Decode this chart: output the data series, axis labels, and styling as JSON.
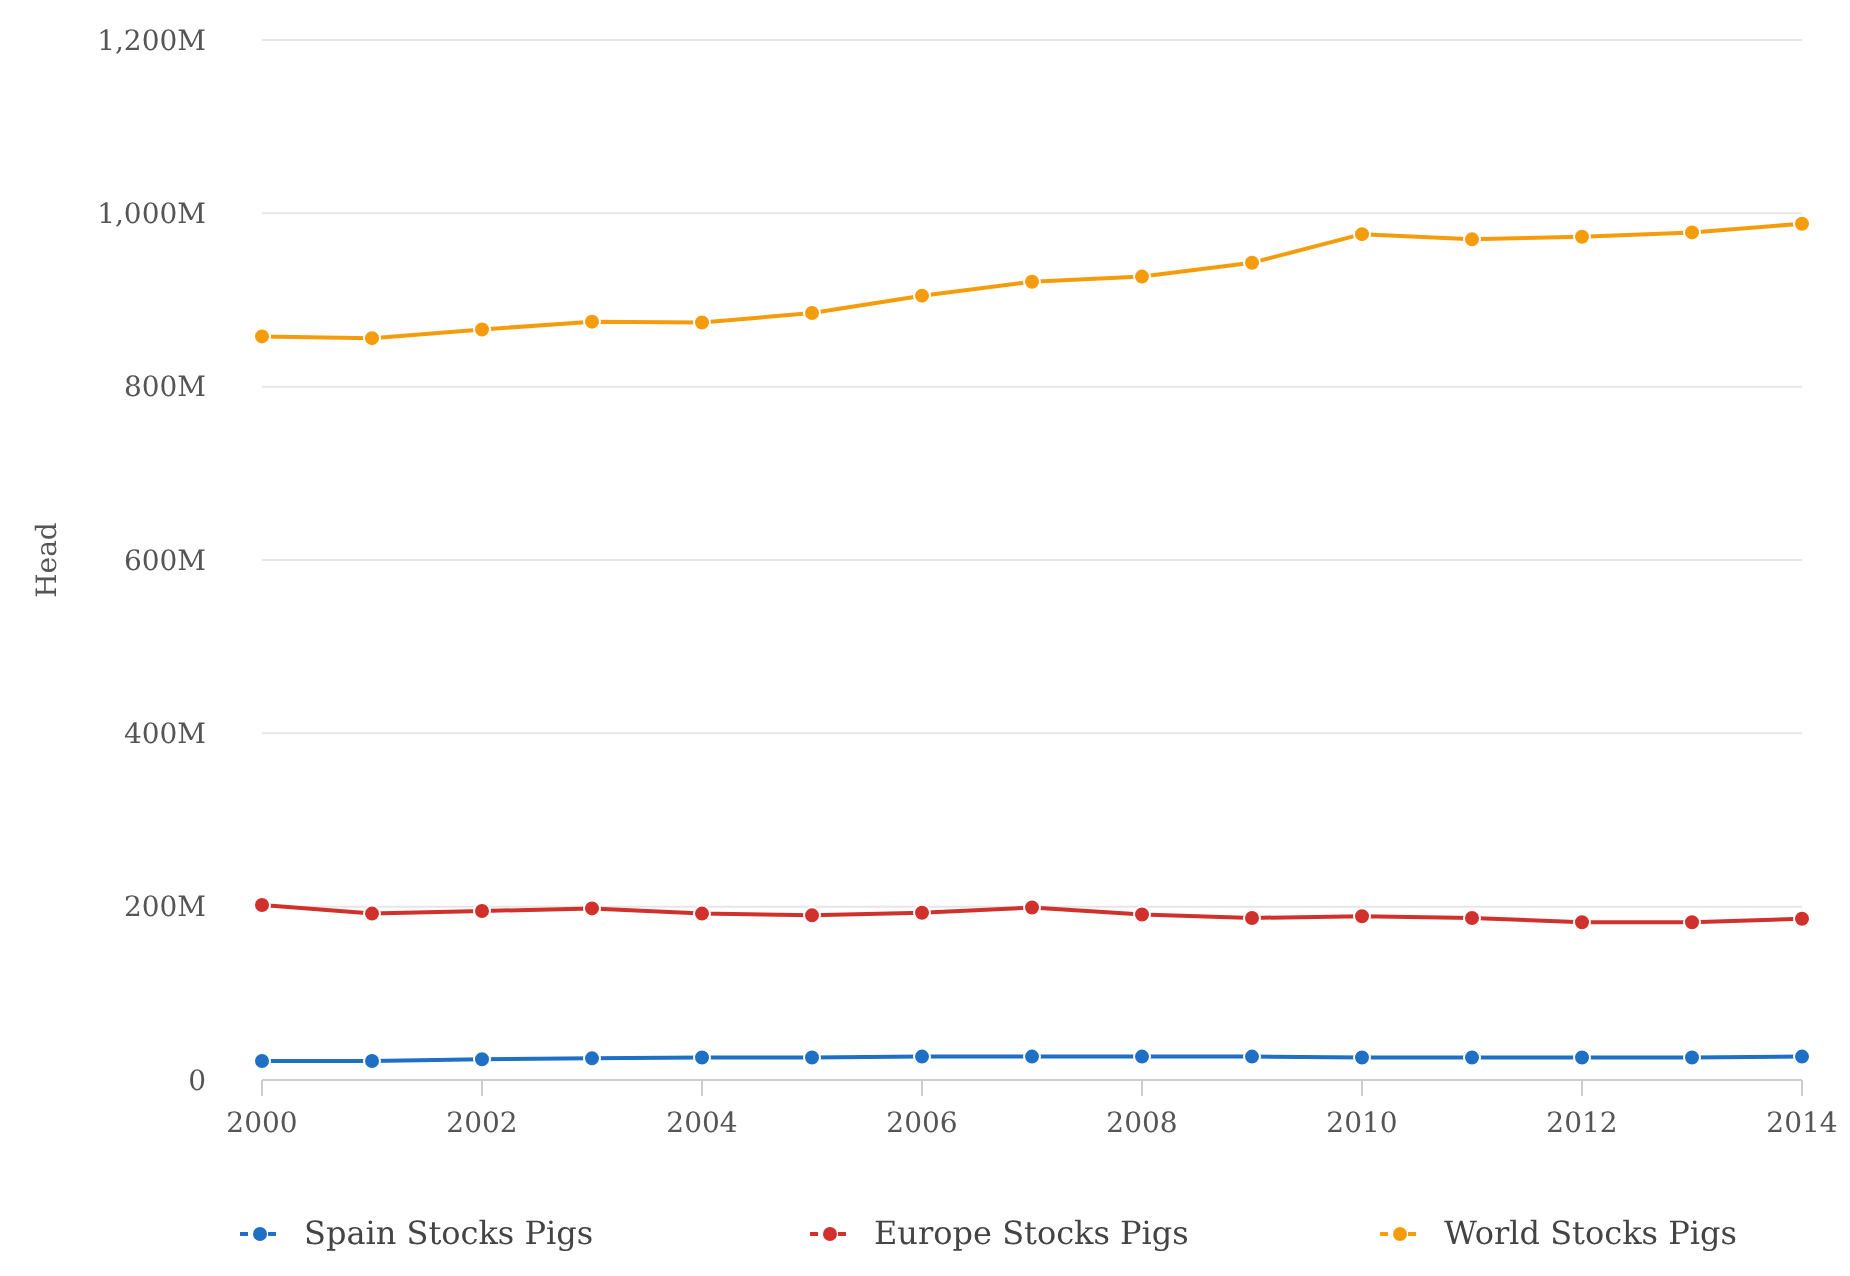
{
  "chart_data": {
    "type": "line",
    "ylabel": "Head",
    "x": [
      2000,
      2001,
      2002,
      2003,
      2004,
      2005,
      2006,
      2007,
      2008,
      2009,
      2010,
      2011,
      2012,
      2013,
      2014
    ],
    "series": [
      {
        "name": "Spain Stocks Pigs",
        "color": "#1f6fc5",
        "values": [
          22,
          22,
          24,
          25,
          26,
          26,
          27,
          27,
          27,
          27,
          26,
          26,
          26,
          26,
          27
        ]
      },
      {
        "name": "Europe Stocks Pigs",
        "color": "#d0312d",
        "values": [
          202,
          192,
          195,
          198,
          192,
          190,
          193,
          199,
          191,
          187,
          189,
          187,
          182,
          182,
          186
        ]
      },
      {
        "name": "World Stocks Pigs",
        "color": "#f59c0c",
        "values": [
          858,
          856,
          866,
          875,
          874,
          885,
          905,
          921,
          927,
          943,
          976,
          970,
          973,
          978,
          988
        ]
      }
    ],
    "xlim": [
      2000,
      2014
    ],
    "xticks": [
      2000,
      2002,
      2004,
      2006,
      2008,
      2010,
      2012,
      2014
    ],
    "ylim": [
      0,
      1200
    ],
    "yticks": [
      {
        "value": 0,
        "label": "0"
      },
      {
        "value": 200,
        "label": "200M"
      },
      {
        "value": 400,
        "label": "400M"
      },
      {
        "value": 600,
        "label": "600M"
      },
      {
        "value": 800,
        "label": "800M"
      },
      {
        "value": 1000,
        "label": "1,000M"
      },
      {
        "value": 1200,
        "label": "1,200M"
      }
    ],
    "grid": "y",
    "legend": "bottom",
    "marker": "circle",
    "line_style": "solid"
  }
}
